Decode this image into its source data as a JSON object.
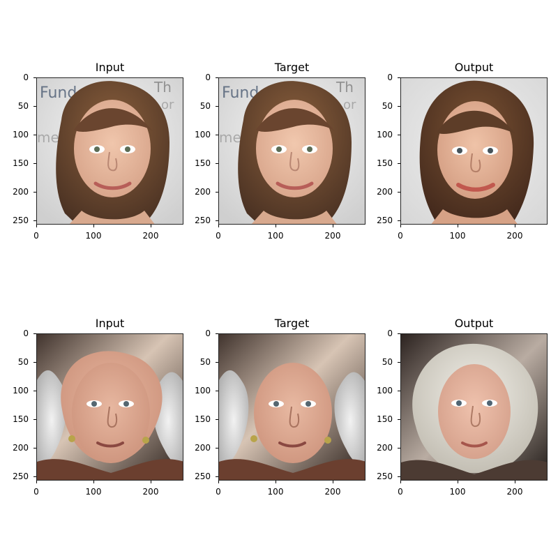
{
  "figure": {
    "panels": [
      {
        "title": "Input",
        "subject": "brunette-woman",
        "variant": "photo"
      },
      {
        "title": "Target",
        "subject": "brunette-woman",
        "variant": "photo"
      },
      {
        "title": "Output",
        "subject": "brunette-woman",
        "variant": "generated"
      },
      {
        "title": "Input",
        "subject": "elderly-woman",
        "variant": "photo"
      },
      {
        "title": "Target",
        "subject": "elderly-woman",
        "variant": "photo"
      },
      {
        "title": "Output",
        "subject": "elderly-woman",
        "variant": "generated"
      }
    ],
    "x_ticks": [
      "0",
      "100",
      "200"
    ],
    "y_ticks": [
      "0",
      "50",
      "100",
      "150",
      "200",
      "250"
    ]
  },
  "colors": {
    "background": "#ffffff",
    "axis": "#000000",
    "hair_brown": "#6b4a31",
    "skin_light": "#e0b39b",
    "hair_white": "#dedede",
    "bg_light": "#e8e8e8",
    "bg_dark": "#2b211c",
    "top_clothing": "#6c3f2f"
  }
}
